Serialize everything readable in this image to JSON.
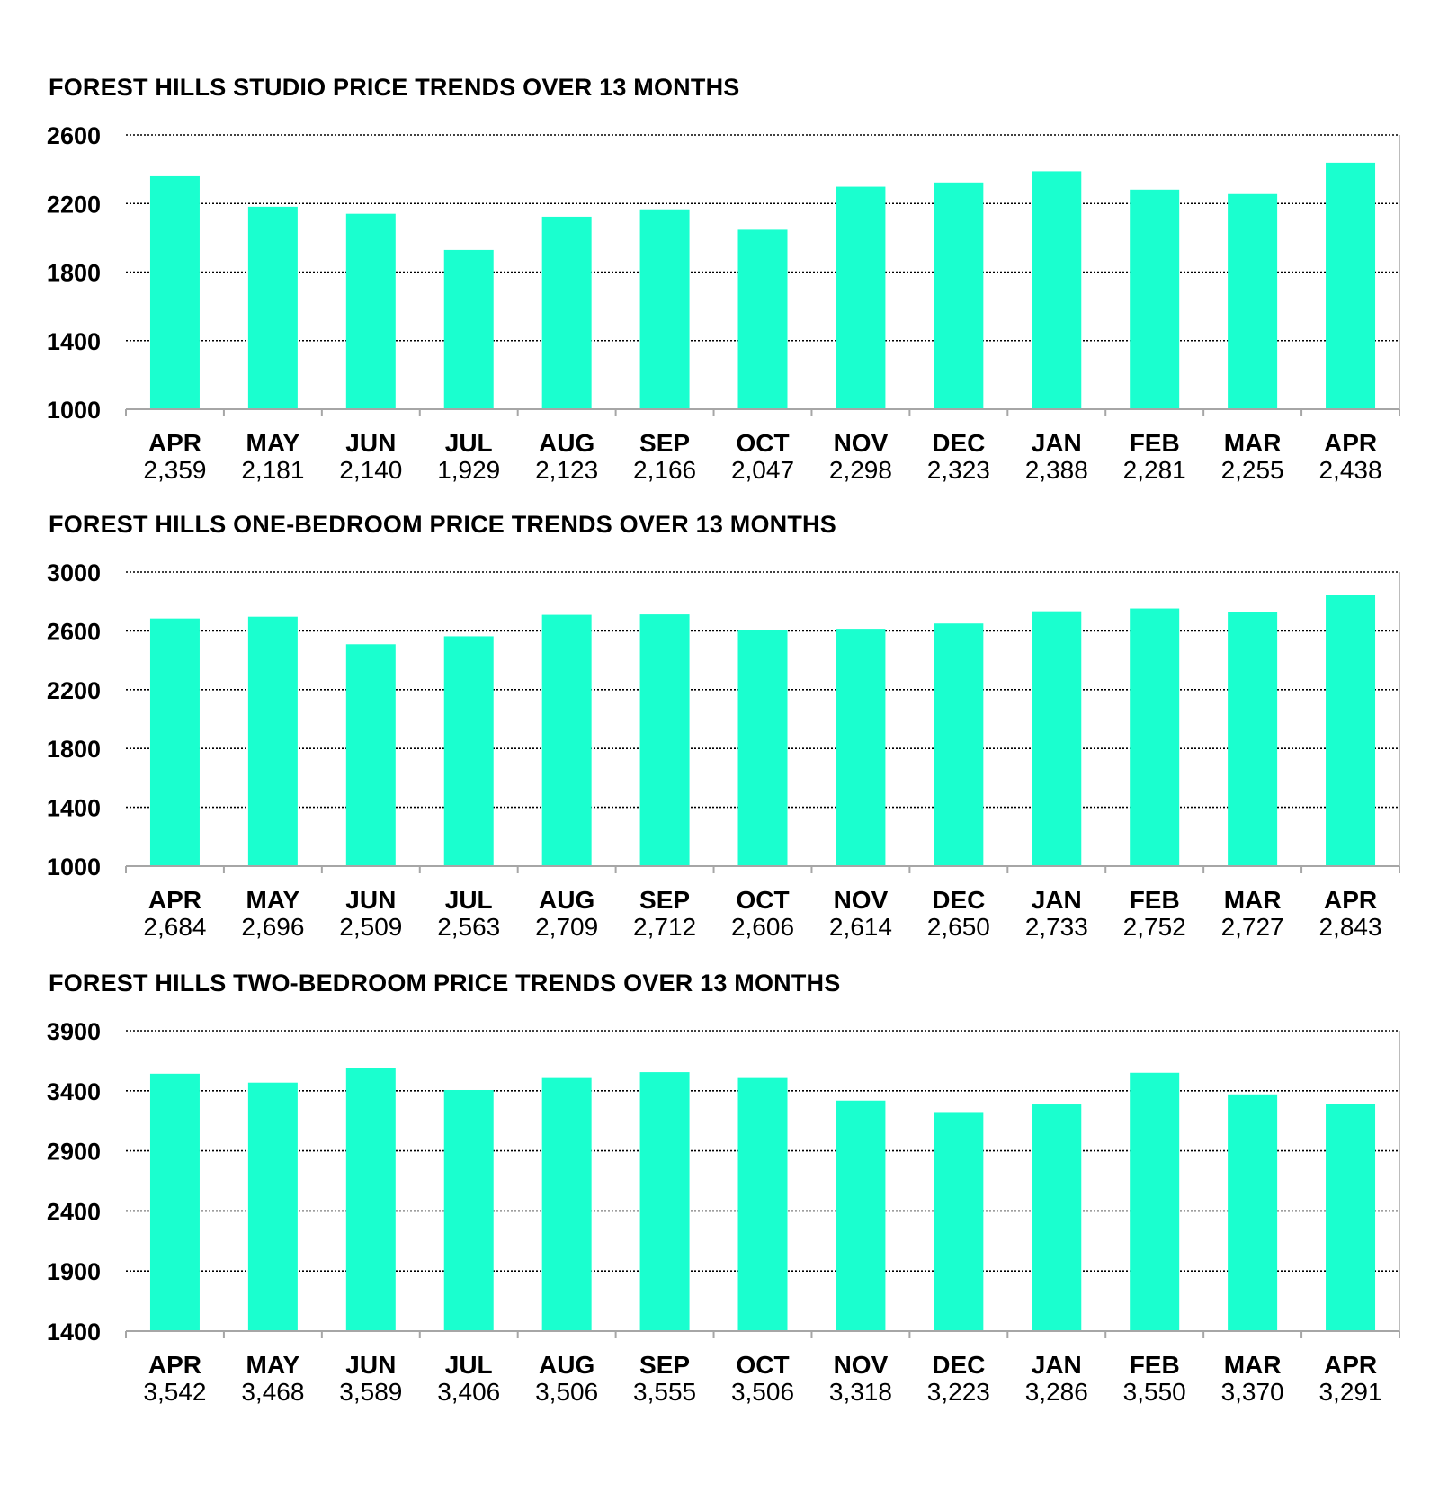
{
  "colors": {
    "bar": "#1affcf",
    "axis": "#a6a6a6",
    "grid": "#000000"
  },
  "chart_data": [
    {
      "type": "bar",
      "title": "FOREST HILLS STUDIO PRICE TRENDS OVER 13 MONTHS",
      "categories": [
        "APR",
        "MAY",
        "JUN",
        "JUL",
        "AUG",
        "SEP",
        "OCT",
        "NOV",
        "DEC",
        "JAN",
        "FEB",
        "MAR",
        "APR"
      ],
      "values": [
        2359,
        2181,
        2140,
        1929,
        2123,
        2166,
        2047,
        2298,
        2323,
        2388,
        2281,
        2255,
        2438
      ],
      "value_labels": [
        "2,359",
        "2,181",
        "2,140",
        "1,929",
        "2,123",
        "2,166",
        "2,047",
        "2,298",
        "2,323",
        "2,388",
        "2,281",
        "2,255",
        "2,438"
      ],
      "ylim": [
        1000,
        2600
      ],
      "yticks": [
        1000,
        1400,
        1800,
        2200,
        2600
      ],
      "grid": true
    },
    {
      "type": "bar",
      "title": "FOREST HILLS ONE-BEDROOM PRICE TRENDS OVER 13 MONTHS",
      "categories": [
        "APR",
        "MAY",
        "JUN",
        "JUL",
        "AUG",
        "SEP",
        "OCT",
        "NOV",
        "DEC",
        "JAN",
        "FEB",
        "MAR",
        "APR"
      ],
      "values": [
        2684,
        2696,
        2509,
        2563,
        2709,
        2712,
        2606,
        2614,
        2650,
        2733,
        2752,
        2727,
        2843
      ],
      "value_labels": [
        "2,684",
        "2,696",
        "2,509",
        "2,563",
        "2,709",
        "2,712",
        "2,606",
        "2,614",
        "2,650",
        "2,733",
        "2,752",
        "2,727",
        "2,843"
      ],
      "ylim": [
        1000,
        3000
      ],
      "yticks": [
        1000,
        1400,
        1800,
        2200,
        2600,
        3000
      ],
      "grid": true
    },
    {
      "type": "bar",
      "title": "FOREST HILLS TWO-BEDROOM PRICE TRENDS OVER 13 MONTHS",
      "categories": [
        "APR",
        "MAY",
        "JUN",
        "JUL",
        "AUG",
        "SEP",
        "OCT",
        "NOV",
        "DEC",
        "JAN",
        "FEB",
        "MAR",
        "APR"
      ],
      "values": [
        3542,
        3468,
        3589,
        3406,
        3506,
        3555,
        3506,
        3318,
        3223,
        3286,
        3550,
        3370,
        3291
      ],
      "value_labels": [
        "3,542",
        "3,468",
        "3,589",
        "3,406",
        "3,506",
        "3,555",
        "3,506",
        "3,318",
        "3,223",
        "3,286",
        "3,550",
        "3,370",
        "3,291"
      ],
      "ylim": [
        1400,
        3900
      ],
      "yticks": [
        1400,
        1900,
        2400,
        2900,
        3400,
        3900
      ],
      "grid": true
    }
  ]
}
